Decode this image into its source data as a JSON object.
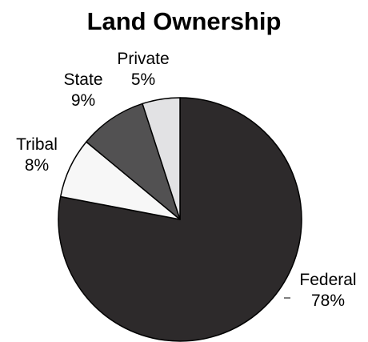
{
  "chart_data": {
    "type": "pie",
    "title": "Land Ownership",
    "slices": [
      {
        "label": "Federal",
        "value": 78,
        "value_label": "78%",
        "color": "#2d2a2b"
      },
      {
        "label": "Tribal",
        "value": 8,
        "value_label": "8%",
        "color": "#f7f7f7"
      },
      {
        "label": "State",
        "value": 9,
        "value_label": "9%",
        "color": "#525152"
      },
      {
        "label": "Private",
        "value": 5,
        "value_label": "5%",
        "color": "#e2e2e4"
      }
    ],
    "start_angle_deg": 0,
    "direction": "clockwise",
    "outline_color": "#000000",
    "legend": "none"
  }
}
